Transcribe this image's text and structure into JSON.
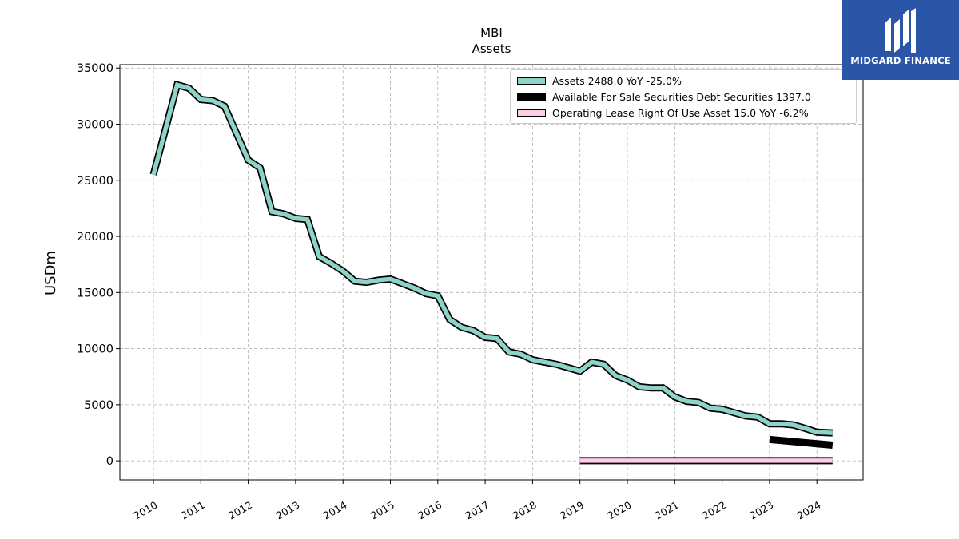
{
  "title": "MBI",
  "subtitle": "Assets",
  "logo_text": "MIDGARD FINANCE",
  "colors": {
    "assets": "#8dd3c7",
    "afs": "#000000",
    "lease": "#fccde5",
    "logo_bg": "#2b56a7"
  },
  "chart_data": {
    "type": "line",
    "title": "MBI",
    "subtitle": "Assets",
    "ylabel": "USDm",
    "xlabel": "",
    "ylim": [
      -1700,
      35300
    ],
    "yticks": [
      0,
      5000,
      10000,
      15000,
      20000,
      25000,
      30000,
      35000
    ],
    "xticks": [
      "2010",
      "2011",
      "2012",
      "2013",
      "2014",
      "2015",
      "2016",
      "2017",
      "2018",
      "2019",
      "2020",
      "2021",
      "2022",
      "2023",
      "2024"
    ],
    "grid": true,
    "legend_position": "top-right",
    "series": [
      {
        "name": "Assets",
        "legend_label": "Assets  2488.0 YoY -25.0%",
        "color": "#8dd3c7",
        "x": [
          2010.0,
          2010.5,
          2010.75,
          2011.0,
          2011.25,
          2011.5,
          2011.75,
          2012.0,
          2012.25,
          2012.5,
          2012.75,
          2013.0,
          2013.25,
          2013.5,
          2013.75,
          2014.0,
          2014.25,
          2014.5,
          2014.75,
          2015.0,
          2015.25,
          2015.5,
          2015.75,
          2016.0,
          2016.25,
          2016.5,
          2016.75,
          2017.0,
          2017.25,
          2017.5,
          2017.75,
          2018.0,
          2018.25,
          2018.5,
          2018.75,
          2019.0,
          2019.25,
          2019.5,
          2019.75,
          2020.0,
          2020.25,
          2020.5,
          2020.75,
          2021.0,
          2021.25,
          2021.5,
          2021.75,
          2022.0,
          2022.25,
          2022.5,
          2022.75,
          2023.0,
          2023.25,
          2023.5,
          2023.75,
          2024.0,
          2024.33
        ],
        "values": [
          25500,
          33500,
          33200,
          32200,
          32100,
          31600,
          29200,
          26800,
          26100,
          22200,
          22000,
          21600,
          21500,
          18200,
          17600,
          16900,
          16000,
          15900,
          16100,
          16200,
          15800,
          15400,
          14900,
          14700,
          12600,
          11900,
          11600,
          11000,
          10900,
          9700,
          9500,
          9000,
          8800,
          8600,
          8300,
          8000,
          8800,
          8600,
          7600,
          7200,
          6600,
          6500,
          6500,
          5700,
          5300,
          5200,
          4700,
          4600,
          4300,
          4000,
          3900,
          3300,
          3300,
          3200,
          2900,
          2550,
          2488
        ]
      },
      {
        "name": "Available For Sale Securities Debt Securities",
        "legend_label": "Available For Sale Securities Debt Securities  1397.0",
        "color": "#000000",
        "x": [
          2023.0,
          2024.33
        ],
        "values": [
          1900,
          1397
        ]
      },
      {
        "name": "Operating Lease Right Of Use Asset",
        "legend_label": "Operating Lease Right Of Use Asset  15.0 YoY -6.2%",
        "color": "#fccde5",
        "x": [
          2019.0,
          2024.33
        ],
        "values": [
          15,
          15
        ]
      }
    ]
  }
}
